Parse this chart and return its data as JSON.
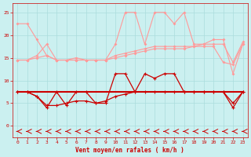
{
  "x": [
    0,
    1,
    2,
    3,
    4,
    5,
    6,
    7,
    8,
    9,
    10,
    11,
    12,
    13,
    14,
    15,
    16,
    17,
    18,
    19,
    20,
    21,
    22,
    23
  ],
  "line1_light": [
    22.5,
    22.5,
    19.0,
    15.5,
    14.5,
    14.5,
    14.5,
    14.5,
    14.5,
    14.5,
    18.0,
    25.0,
    25.0,
    18.0,
    25.0,
    25.0,
    22.5,
    25.0,
    18.0,
    18.0,
    19.0,
    19.0,
    11.5,
    18.0
  ],
  "line2_light": [
    14.5,
    14.5,
    15.5,
    18.0,
    14.5,
    14.5,
    15.0,
    14.5,
    14.5,
    14.5,
    15.5,
    16.0,
    16.5,
    17.0,
    17.5,
    17.5,
    17.5,
    17.5,
    17.5,
    18.0,
    18.0,
    18.0,
    14.0,
    18.5
  ],
  "line3_light": [
    14.5,
    14.5,
    15.0,
    15.5,
    14.5,
    14.5,
    14.5,
    14.5,
    14.5,
    14.5,
    15.0,
    15.5,
    16.0,
    16.5,
    17.0,
    17.0,
    17.0,
    17.0,
    17.5,
    17.5,
    17.5,
    14.0,
    13.5,
    18.0
  ],
  "line4_dark": [
    7.5,
    7.5,
    6.5,
    4.0,
    7.5,
    4.5,
    7.5,
    7.5,
    5.0,
    5.0,
    11.5,
    11.5,
    7.5,
    11.5,
    10.5,
    11.5,
    11.5,
    7.5,
    7.5,
    7.5,
    7.5,
    7.5,
    5.0,
    7.5
  ],
  "line5_dark": [
    7.5,
    7.5,
    6.5,
    4.5,
    4.5,
    5.0,
    5.5,
    5.5,
    5.0,
    5.5,
    6.5,
    7.0,
    7.5,
    7.5,
    7.5,
    7.5,
    7.5,
    7.5,
    7.5,
    7.5,
    7.5,
    7.5,
    4.0,
    7.5
  ],
  "line6_dark": [
    7.5,
    7.5,
    7.5,
    7.5,
    7.5,
    7.5,
    7.5,
    7.5,
    7.5,
    7.5,
    7.5,
    7.5,
    7.5,
    7.5,
    7.5,
    7.5,
    7.5,
    7.5,
    7.5,
    7.5,
    7.5,
    7.5,
    7.5,
    7.5
  ],
  "color_light": "#FF9999",
  "color_dark": "#CC0000",
  "bg_color": "#CBF0F0",
  "grid_color": "#AADDDD",
  "xlabel": "Vent moyen/en rafales ( km/h )",
  "yticks": [
    0,
    5,
    10,
    15,
    20,
    25
  ],
  "xlim": [
    -0.5,
    23.5
  ],
  "ylim": [
    -2.5,
    27
  ]
}
